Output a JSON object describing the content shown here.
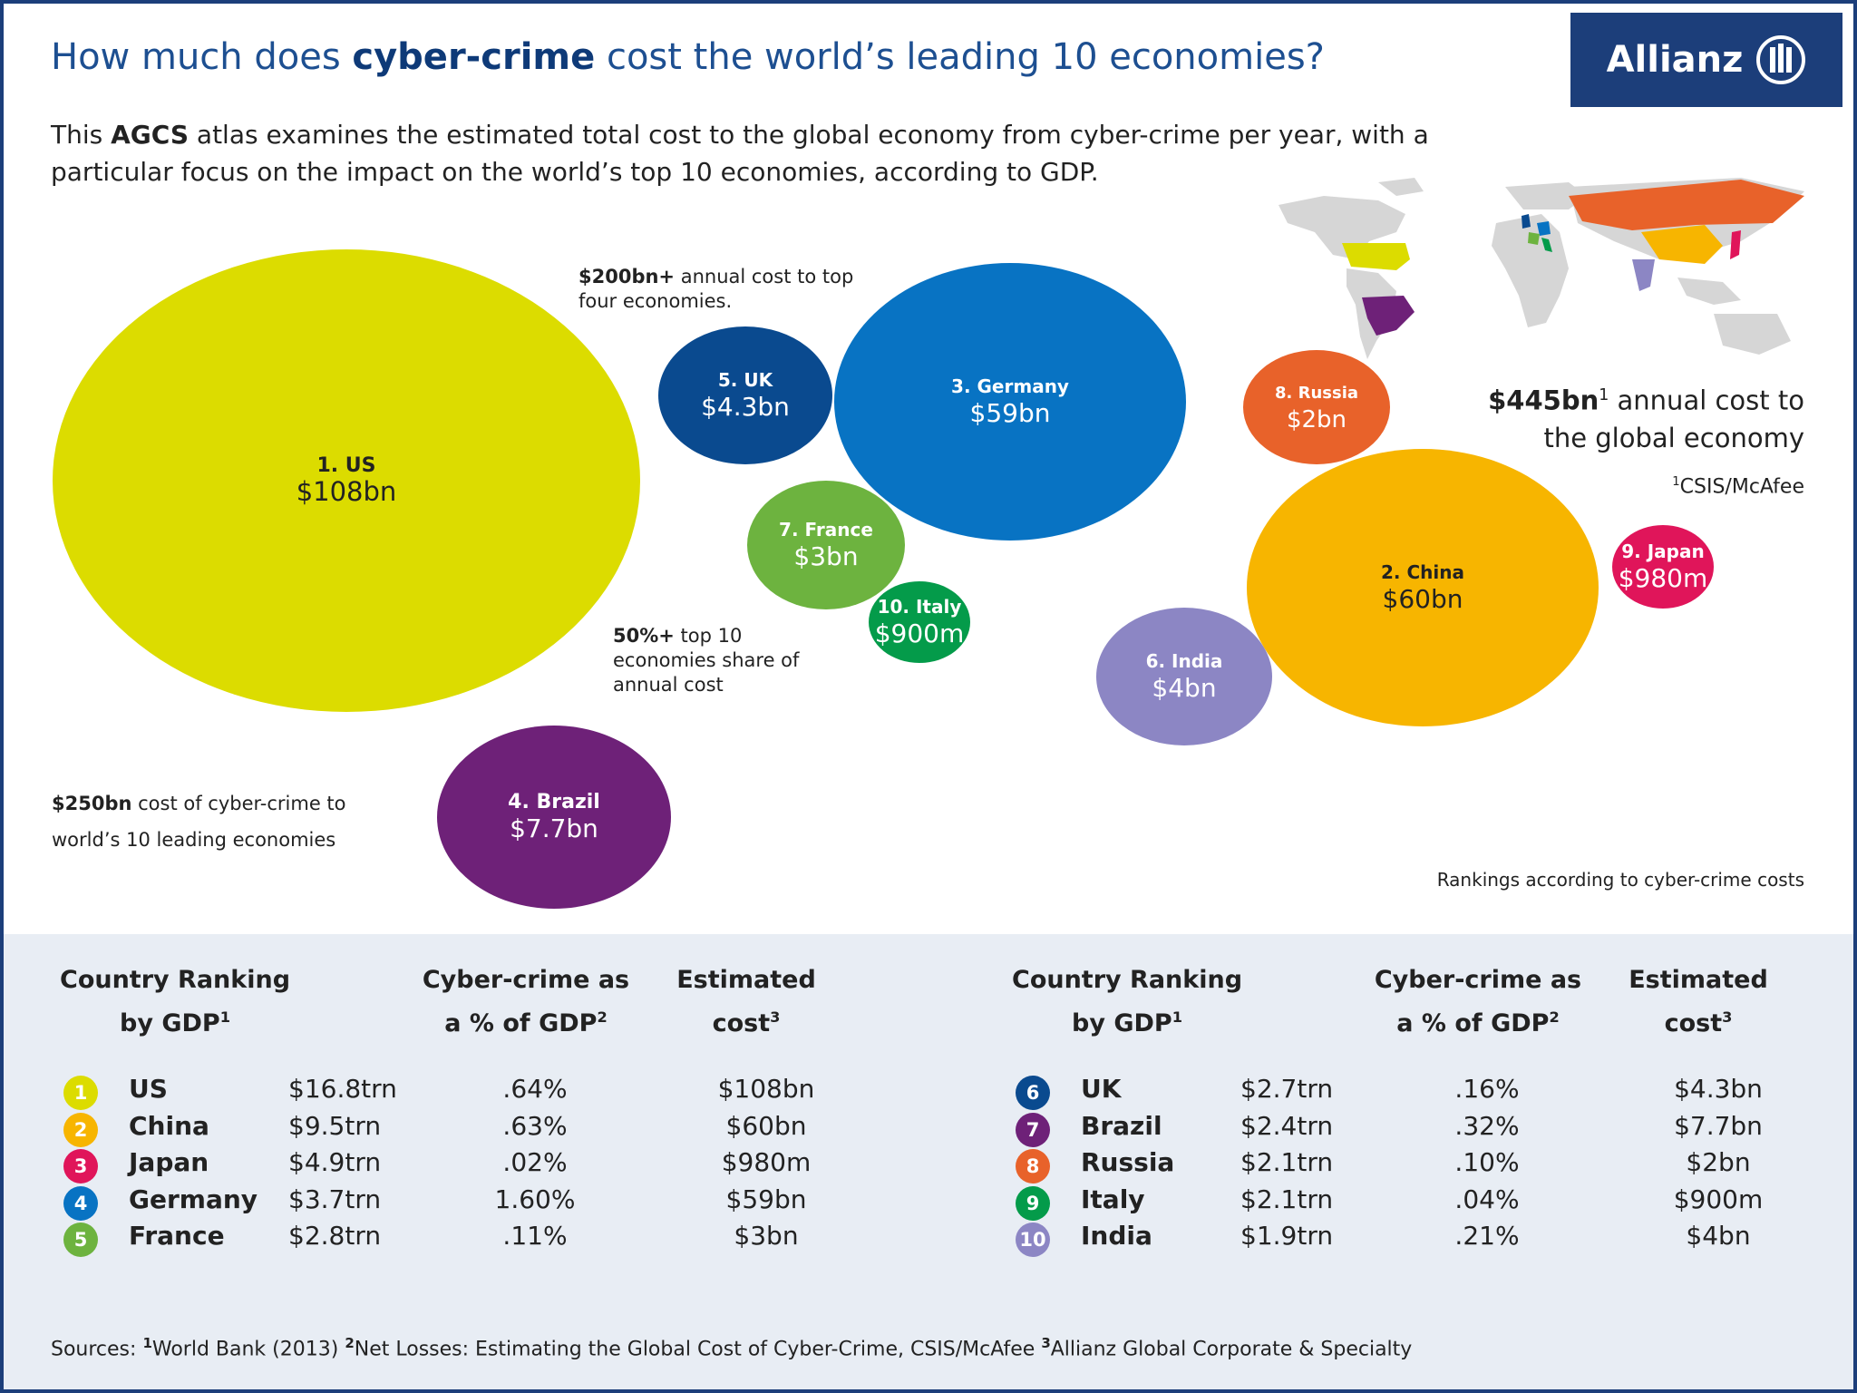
{
  "title": {
    "pre": "How much does ",
    "bold": "cyber-crime",
    "post": " cost the world’s leading 10 economies?"
  },
  "intro": {
    "pre": "This ",
    "bold": "AGCS",
    "post": " atlas examines the estimated total cost to the global economy from cyber-crime per year, with a particular focus on the impact on the world’s top 10 economies, according to GDP."
  },
  "logo": {
    "text": "Allianz",
    "icon": "allianz-eagle-icon"
  },
  "annotations": {
    "a200": {
      "bold": "$200bn+",
      "text": " annual cost to top four economies."
    },
    "a50": {
      "bold": "50%+",
      "text": " top 10 economies share of annual cost"
    },
    "a250": {
      "bold": "$250bn",
      "text": " cost of cyber-crime to world’s 10 leading economies"
    },
    "a445": {
      "bold": "$445bn",
      "sup": "1",
      "text": " annual cost to the global economy"
    },
    "source1": "CSIS/McAfee",
    "source1_sup": "1",
    "rankings_note": "Rankings according to cyber-crime costs"
  },
  "colors": {
    "US": "#dcdc00",
    "China": "#f7b500",
    "Japan": "#e0155a",
    "Germany": "#0873c3",
    "France": "#6db33f",
    "UK": "#0a4a8f",
    "Brazil": "#6e2178",
    "Russia": "#e8622a",
    "Italy": "#049b4a",
    "India": "#8c86c4",
    "map_land": "#d6d6d6",
    "frame": "#1c3e7a"
  },
  "chart_data": {
    "type": "bubble",
    "unit": "USD",
    "series": [
      {
        "rank": "1",
        "country": "US",
        "label": "1. US",
        "value_label": "$108bn",
        "value": 108000000000
      },
      {
        "rank": "2",
        "country": "China",
        "label": "2. China",
        "value_label": "$60bn",
        "value": 60000000000
      },
      {
        "rank": "3",
        "country": "Germany",
        "label": "3. Germany",
        "value_label": "$59bn",
        "value": 59000000000
      },
      {
        "rank": "4",
        "country": "Brazil",
        "label": "4. Brazil",
        "value_label": "$7.7bn",
        "value": 7700000000
      },
      {
        "rank": "5",
        "country": "UK",
        "label": "5. UK",
        "value_label": "$4.3bn",
        "value": 4300000000
      },
      {
        "rank": "6",
        "country": "India",
        "label": "6. India",
        "value_label": "$4bn",
        "value": 4000000000
      },
      {
        "rank": "7",
        "country": "France",
        "label": "7. France",
        "value_label": "$3bn",
        "value": 3000000000
      },
      {
        "rank": "8",
        "country": "Russia",
        "label": "8. Russia",
        "value_label": "$2bn",
        "value": 2000000000
      },
      {
        "rank": "9",
        "country": "Japan",
        "label": "9. Japan",
        "value_label": "$980m",
        "value": 980000000
      },
      {
        "rank": "10",
        "country": "Italy",
        "label": "10. Italy",
        "value_label": "$900m",
        "value": 900000000
      }
    ]
  },
  "table": {
    "headers": {
      "country": {
        "line1": "Country Ranking",
        "line2": "by GDP",
        "sup": "1"
      },
      "pct": {
        "line1": "Cyber-crime as",
        "line2": "a % of GDP",
        "sup": "2"
      },
      "cost": {
        "line1": "Estimated",
        "line2": "cost",
        "sup": "3"
      }
    },
    "left": [
      {
        "rank": "1",
        "country": "US",
        "gdp": "$16.8trn",
        "pct": ".64%",
        "cost": "$108bn"
      },
      {
        "rank": "2",
        "country": "China",
        "gdp": "$9.5trn",
        "pct": ".63%",
        "cost": "$60bn"
      },
      {
        "rank": "3",
        "country": "Japan",
        "gdp": "$4.9trn",
        "pct": ".02%",
        "cost": "$980m"
      },
      {
        "rank": "4",
        "country": "Germany",
        "gdp": "$3.7trn",
        "pct": "1.60%",
        "cost": "$59bn"
      },
      {
        "rank": "5",
        "country": "France",
        "gdp": "$2.8trn",
        "pct": ".11%",
        "cost": "$3bn"
      }
    ],
    "right": [
      {
        "rank": "6",
        "country": "UK",
        "gdp": "$2.7trn",
        "pct": ".16%",
        "cost": "$4.3bn"
      },
      {
        "rank": "7",
        "country": "Brazil",
        "gdp": "$2.4trn",
        "pct": ".32%",
        "cost": "$7.7bn"
      },
      {
        "rank": "8",
        "country": "Russia",
        "gdp": "$2.1trn",
        "pct": ".10%",
        "cost": "$2bn"
      },
      {
        "rank": "9",
        "country": "Italy",
        "gdp": "$2.1trn",
        "pct": ".04%",
        "cost": "$900m"
      },
      {
        "rank": "10",
        "country": "India",
        "gdp": "$1.9trn",
        "pct": ".21%",
        "cost": "$4bn"
      }
    ]
  },
  "sources": {
    "label": "Sources: ",
    "items": [
      {
        "sup": "1",
        "text": "World Bank (2013) "
      },
      {
        "sup": "2",
        "text": "Net Losses: Estimating the Global Cost of Cyber-Crime, CSIS/McAfee "
      },
      {
        "sup": "3",
        "text": "Allianz Global Corporate & Specialty"
      }
    ]
  }
}
